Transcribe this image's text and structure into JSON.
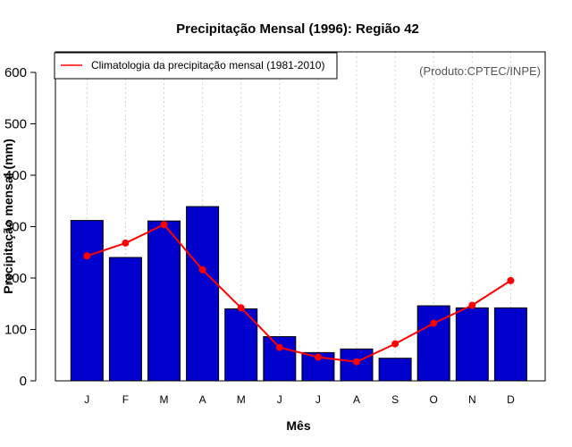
{
  "chart_data": {
    "type": "bar",
    "title": "Precipitação Mensal (1996): Região 42",
    "xlabel": "Mês",
    "ylabel": "Precipitação mensal (mm)",
    "ylim": [
      0,
      640
    ],
    "yticks": [
      0,
      100,
      200,
      300,
      400,
      500,
      600
    ],
    "categories": [
      "J",
      "F",
      "M",
      "A",
      "M",
      "J",
      "J",
      "A",
      "S",
      "O",
      "N",
      "D"
    ],
    "grid": "vertical dotted",
    "legend_position": "top-left",
    "series": [
      {
        "name": "Precipitação mensal (1996)",
        "type": "bar",
        "color": "#0000cc",
        "values": [
          312,
          240,
          311,
          339,
          140,
          86,
          55,
          62,
          44,
          146,
          142,
          142
        ]
      },
      {
        "name": "Climatologia da precipitação mensal (1981-2010)",
        "type": "line",
        "color": "#ff0000",
        "values": [
          243,
          268,
          304,
          216,
          142,
          65,
          46,
          37,
          72,
          112,
          147,
          195
        ]
      }
    ],
    "annotation": "(Produto:CPTEC/INPE)"
  }
}
